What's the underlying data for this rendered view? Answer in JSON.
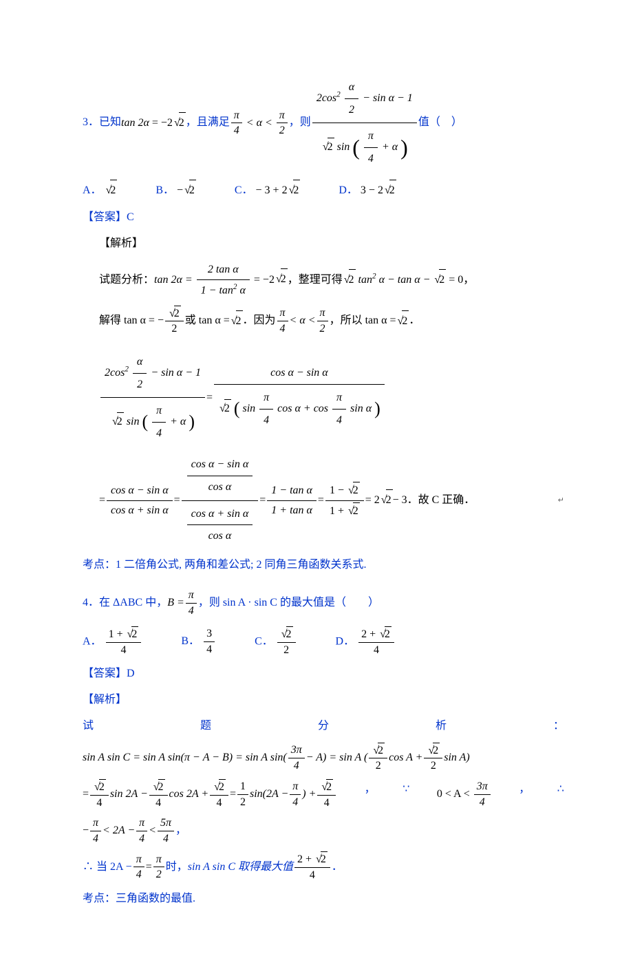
{
  "colors": {
    "blue": "#0033cc",
    "black": "#000000",
    "bg": "#ffffff"
  },
  "q3": {
    "num": "3．",
    "stem_pre": "已知",
    "eq1_lhs": "tan 2α",
    "eq1_rhs_neg": "−2",
    "eq1_rhs_rad": "2",
    "comma1": "，",
    "stem_mid": "且满足",
    "range_l": "π",
    "range_l_den": "4",
    "lt1": "< α <",
    "range_r": "π",
    "range_r_den": "2",
    "comma2": "，",
    "then": "则",
    "expr_num_pre": "2cos",
    "expr_num_sup": "2",
    "expr_num_frac_n": "α",
    "expr_num_frac_d": "2",
    "expr_num_mid": "− sin α − 1",
    "expr_den_rad": "2",
    "expr_den_sin": " sin",
    "expr_den_inner_n": "π",
    "expr_den_inner_d": "4",
    "expr_den_inner_tail": "+ α",
    "stem_tail": "值（　）",
    "optA_label": "A．",
    "optA_rad": "2",
    "optB_label": "B．",
    "optB_neg": "−",
    "optB_rad": "2",
    "optC_label": "C．",
    "optC_text_pre": "− 3 + 2",
    "optC_rad": "2",
    "optD_label": "D．",
    "optD_text_pre": "3 − 2",
    "optD_rad": "2",
    "ans_label": "【答案】",
    "ans_val": "C",
    "sol_label": "【解析】",
    "ana_label": "试题分析：",
    "line1_a": "tan 2α =",
    "line1_num": "2 tan α",
    "line1_den": "1 − tan",
    "line1_den_sup": "2",
    "line1_den_tail": " α",
    "line1_eq": "= −2",
    "line1_rad": "2",
    "line1_tail_a": "，整理可得 ",
    "line1_rad2": "2",
    "line1_tail_b": " tan",
    "line1_tail_b_sup": "2",
    "line1_tail_c": " α − tan α − ",
    "line1_rad3": "2",
    "line1_tail_d": " = 0，",
    "line2_pre": "解得 tan α = −",
    "line2_frac_n_rad": "2",
    "line2_frac_d": "2",
    "line2_or": " 或 tan α = ",
    "line2_rad": "2",
    "line2_mid": " ．因为 ",
    "line2_rng_l_n": "π",
    "line2_rng_l_d": "4",
    "line2_lt": "< α <",
    "line2_rng_r_n": "π",
    "line2_rng_r_d": "2",
    "line2_tail": "，所以 tan α = ",
    "line2_rad2": "2",
    "line2_end": " ．",
    "bigL_num_a": "2cos",
    "bigL_num_sup": "2",
    "bigL_num_frac_n": "α",
    "bigL_num_frac_d": "2",
    "bigL_num_b": "− sin α − 1",
    "bigL_den_rad": "2",
    "bigL_den_sin": " sin",
    "bigL_den_inner_n": "π",
    "bigL_den_inner_d": "4",
    "bigL_den_inner_tail": "+ α",
    "bigR_num": "cos α − sin α",
    "bigR_den_rad": "2",
    "bigR_den_a": "sin",
    "bigR_den_frac1_n": "π",
    "bigR_den_frac1_d": "4",
    "bigR_den_b": "cos α + cos",
    "bigR_den_frac2_n": "π",
    "bigR_den_frac2_d": "4",
    "bigR_den_c": "sin α",
    "chain_a_num": "cos α − sin α",
    "chain_a_den": "cos α + sin α",
    "chain_b_num_num": "cos α − sin α",
    "chain_b_num_den": "cos α",
    "chain_b_den_num": "cos α + sin α",
    "chain_b_den_den": "cos α",
    "chain_c_num": "1 − tan α",
    "chain_c_den": "1 + tan α",
    "chain_d_num_pre": "1 − ",
    "chain_d_num_rad": "2",
    "chain_d_den_pre": "1 + ",
    "chain_d_den_rad": "2",
    "chain_e_pre": "= 2",
    "chain_e_rad": "2",
    "chain_e_tail": " − 3．故 C 正确．",
    "kd_label": "考点：",
    "kd_text": "1 二倍角公式, 两角和差公式; 2 同角三角函数关系式."
  },
  "q4": {
    "num": "4．",
    "stem_a": "在 ΔABC 中，",
    "stem_B": "B =",
    "stem_frac_n": "π",
    "stem_frac_d": "4",
    "stem_b": "，则 sin A · sin C 的最大值是（　　）",
    "optA_label": "A．",
    "optA_num_pre": "1 + ",
    "optA_num_rad": "2",
    "optA_den": "4",
    "optB_label": "B．",
    "optB_num": "3",
    "optB_den": "4",
    "optC_label": "C．",
    "optC_num_rad": "2",
    "optC_den": "2",
    "optD_label": "D．",
    "optD_num_pre": "2 + ",
    "optD_num_rad": "2",
    "optD_den": "4",
    "ans_label": "【答案】",
    "ans_val": "D",
    "sol_label": "【解析】",
    "spread_a": "试",
    "spread_b": "题",
    "spread_c": "分",
    "spread_d": "析",
    "spread_e": "：",
    "l1_a": "sin A sin C = sin A sin(π − A − B) = sin A sin(",
    "l1_frac1_n": "3π",
    "l1_frac1_d": "4",
    "l1_b": "− A) = sin A (",
    "l1_frac2_n_rad": "2",
    "l1_frac2_d": "2",
    "l1_c": "cos A +",
    "l1_frac3_n_rad": "2",
    "l1_frac3_d": "2",
    "l1_d": "sin A)",
    "l2_eq": "=",
    "l2_f1_n_rad": "2",
    "l2_f1_d": "4",
    "l2_a": "sin 2A −",
    "l2_f2_n_rad": "2",
    "l2_f2_d": "4",
    "l2_b": "cos 2A +",
    "l2_f3_n_rad": "2",
    "l2_f3_d": "4",
    "l2_c": "=",
    "l2_f4_n": "1",
    "l2_f4_d": "2",
    "l2_d": "sin(2A −",
    "l2_f5_n": "π",
    "l2_f5_d": "4",
    "l2_e": ") +",
    "l2_f6_n_rad": "2",
    "l2_f6_d": "4",
    "l2_comma": "，",
    "l2_because": "∵",
    "l2_rng_a": "0 < A <",
    "l2_rng_n": "3π",
    "l2_rng_d": "4",
    "l2_comma2": "，",
    "l2_therefore": "∴",
    "l3_pre": "−",
    "l3_f1_n": "π",
    "l3_f1_d": "4",
    "l3_a": "< 2A −",
    "l3_f2_n": "π",
    "l3_f2_d": "4",
    "l3_b": "<",
    "l3_f3_n": "5π",
    "l3_f3_d": "4",
    "l3_comma": "，",
    "l4_th": "∴ 当 2A −",
    "l4_f1_n": "π",
    "l4_f1_d": "4",
    "l4_a": "=",
    "l4_f2_n": "π",
    "l4_f2_d": "2",
    "l4_b": "时，",
    "l4_c": "sin A sin C 取得最大值",
    "l4_fr_n_pre": "2 + ",
    "l4_fr_n_rad": "2",
    "l4_fr_d": "4",
    "l4_end": "．",
    "kd_label": "考点：",
    "kd_text": "三角函数的最值."
  }
}
